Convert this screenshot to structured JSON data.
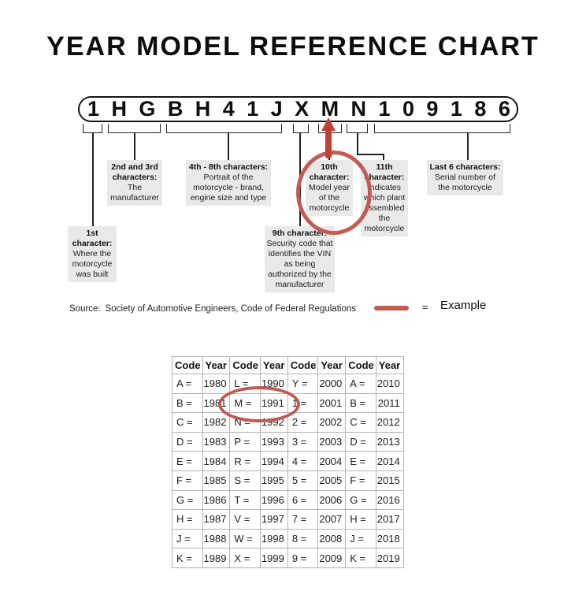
{
  "title": "YEAR MODEL REFERENCE CHART",
  "vin": {
    "characters": [
      "1",
      "H",
      "G",
      "B",
      "H",
      "4",
      "1",
      "J",
      "X",
      "M",
      "N",
      "1",
      "0",
      "9",
      "1",
      "8",
      "6"
    ]
  },
  "callouts": [
    {
      "heading": "1st character:",
      "body": "Where the motorcycle was built"
    },
    {
      "heading": "2nd and 3rd characters:",
      "body": "The manufacturer"
    },
    {
      "heading": "4th - 8th characters:",
      "body": "Portrait of the motorcycle - brand, engine size and type"
    },
    {
      "heading": "9th character:",
      "body": "Security code that identifies the VIN as being authorized by the manufacturer"
    },
    {
      "heading": "10th character:",
      "body": "Model year of the motorcycle"
    },
    {
      "heading": "11th character:",
      "body": "Indicates which plant assembled the motorcycle"
    },
    {
      "heading": "Last 6 characters:",
      "body": "Serial number of the motorcycle"
    }
  ],
  "source": {
    "label": "Source:",
    "text": "Society of Automotive Engineers, Code of Federal Regulations"
  },
  "legend": {
    "equals": "=",
    "label": "Example"
  },
  "colors": {
    "highlight_red": "#c45b52",
    "arrow_red": "#bf4136",
    "callout_gray": "#e9e9e9",
    "table_border_gray": "#b3b3b3"
  },
  "chart_data": {
    "type": "table",
    "columns": [
      "Code",
      "Year",
      "Code",
      "Year",
      "Code",
      "Year",
      "Code",
      "Year"
    ],
    "rows": [
      [
        "A =",
        "1980",
        "L =",
        "1990",
        "Y =",
        "2000",
        "A =",
        "2010"
      ],
      [
        "B =",
        "1981",
        "M =",
        "1991",
        "1 =",
        "2001",
        "B =",
        "2011"
      ],
      [
        "C =",
        "1982",
        "N =",
        "1992",
        "2 =",
        "2002",
        "C =",
        "2012"
      ],
      [
        "D =",
        "1983",
        "P =",
        "1993",
        "3 =",
        "2003",
        "D =",
        "2013"
      ],
      [
        "E =",
        "1984",
        "R =",
        "1994",
        "4 =",
        "2004",
        "E =",
        "2014"
      ],
      [
        "F =",
        "1985",
        "S =",
        "1995",
        "5 =",
        "2005",
        "F =",
        "2015"
      ],
      [
        "G =",
        "1986",
        "T =",
        "1996",
        "6 =",
        "2006",
        "G =",
        "2016"
      ],
      [
        "H =",
        "1987",
        "V =",
        "1997",
        "7 =",
        "2007",
        "H =",
        "2017"
      ],
      [
        "J =",
        "1988",
        "W =",
        "1998",
        "8 =",
        "2008",
        "J =",
        "2018"
      ],
      [
        "K =",
        "1989",
        "X =",
        "1999",
        "9 =",
        "2009",
        "K =",
        "2019"
      ]
    ],
    "highlighted": {
      "code": "M =",
      "year": "1991"
    }
  }
}
